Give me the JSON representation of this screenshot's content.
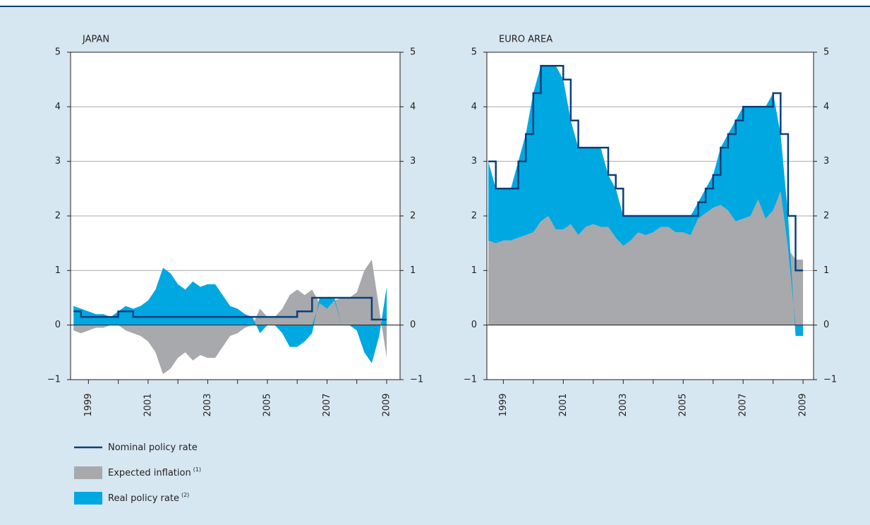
{
  "chart_data": [
    {
      "type": "area",
      "title": "JAPAN",
      "x": [
        1998.5,
        1998.75,
        1999,
        1999.25,
        1999.5,
        1999.75,
        2000,
        2000.25,
        2000.5,
        2000.75,
        2001,
        2001.25,
        2001.5,
        2001.75,
        2002,
        2002.25,
        2002.5,
        2002.75,
        2003,
        2003.25,
        2003.5,
        2003.75,
        2004,
        2004.25,
        2004.5,
        2004.75,
        2005,
        2005.25,
        2005.5,
        2005.75,
        2006,
        2006.25,
        2006.5,
        2006.75,
        2007,
        2007.25,
        2007.5,
        2007.75,
        2008,
        2008.25,
        2008.5,
        2008.75,
        2009
      ],
      "series": [
        {
          "name": "Expected inflation",
          "footnote": "(1)",
          "type": "area",
          "color": "#a7a9ac",
          "values": [
            -0.1,
            -0.15,
            -0.1,
            -0.05,
            -0.05,
            0,
            0,
            -0.1,
            -0.15,
            -0.2,
            -0.3,
            -0.5,
            -0.9,
            -0.8,
            -0.6,
            -0.5,
            -0.65,
            -0.55,
            -0.6,
            -0.6,
            -0.4,
            -0.2,
            -0.15,
            -0.05,
            0,
            0.3,
            0.15,
            0.15,
            0.3,
            0.55,
            0.65,
            0.55,
            0.65,
            0.4,
            0.3,
            0.45,
            0.5,
            0.5,
            0.6,
            1.0,
            1.2,
            0.3,
            -0.6
          ]
        },
        {
          "name": "Real policy rate",
          "footnote": "(2)",
          "type": "area",
          "color": "#00a8e1",
          "values": [
            0.35,
            0.3,
            0.25,
            0.2,
            0.2,
            0.15,
            0.25,
            0.35,
            0.3,
            0.35,
            0.45,
            0.65,
            1.05,
            0.95,
            0.75,
            0.65,
            0.8,
            0.7,
            0.75,
            0.75,
            0.55,
            0.35,
            0.3,
            0.2,
            0.15,
            -0.15,
            0,
            0,
            -0.15,
            -0.4,
            -0.4,
            -0.3,
            -0.15,
            0.1,
            0.2,
            0.05,
            0,
            0,
            -0.1,
            -0.5,
            -0.7,
            -0.2,
            0.7
          ]
        },
        {
          "name": "Nominal policy rate",
          "type": "line",
          "color": "#0b3f7c",
          "values": [
            0.25,
            0.15,
            0.15,
            0.15,
            0.15,
            0.15,
            0.25,
            0.25,
            0.15,
            0.15,
            0.15,
            0.15,
            0.15,
            0.15,
            0.15,
            0.15,
            0.15,
            0.15,
            0.15,
            0.15,
            0.15,
            0.15,
            0.15,
            0.15,
            0.15,
            0.15,
            0.15,
            0.15,
            0.15,
            0.15,
            0.25,
            0.25,
            0.5,
            0.5,
            0.5,
            0.5,
            0.5,
            0.5,
            0.5,
            0.5,
            0.1,
            0.1,
            0.1
          ]
        }
      ],
      "xlim": [
        1998.4,
        2009.45
      ],
      "xticks": [
        1999,
        2001,
        2003,
        2005,
        2007,
        2009
      ],
      "ylim": [
        -1,
        5
      ],
      "yticks": [
        {
          "value": -1,
          "label": "−1"
        },
        0,
        1,
        2,
        3,
        4,
        5
      ],
      "grid": true
    },
    {
      "type": "area",
      "title": "EURO AREA",
      "x": [
        1998.5,
        1998.75,
        1999,
        1999.25,
        1999.5,
        1999.75,
        2000,
        2000.25,
        2000.5,
        2000.75,
        2001,
        2001.25,
        2001.5,
        2001.75,
        2002,
        2002.25,
        2002.5,
        2002.75,
        2003,
        2003.25,
        2003.5,
        2003.75,
        2004,
        2004.25,
        2004.5,
        2004.75,
        2005,
        2005.25,
        2005.5,
        2005.75,
        2006,
        2006.25,
        2006.5,
        2006.75,
        2007,
        2007.25,
        2007.5,
        2007.75,
        2008,
        2008.25,
        2008.5,
        2008.75,
        2009
      ],
      "series": [
        {
          "name": "Expected inflation",
          "footnote": "(1)",
          "type": "area",
          "color": "#a7a9ac",
          "values": [
            1.55,
            1.5,
            1.55,
            1.55,
            1.6,
            1.65,
            1.7,
            1.9,
            2.0,
            1.75,
            1.75,
            1.85,
            1.65,
            1.8,
            1.85,
            1.8,
            1.8,
            1.6,
            1.45,
            1.55,
            1.7,
            1.65,
            1.7,
            1.8,
            1.8,
            1.7,
            1.7,
            1.65,
            1.95,
            2.05,
            2.15,
            2.2,
            2.1,
            1.9,
            1.95,
            2.0,
            2.3,
            1.95,
            2.1,
            2.45,
            1.4,
            1.2,
            1.2
          ]
        },
        {
          "name": "Real policy rate",
          "footnote": "(2)",
          "type": "area",
          "color": "#00a8e1",
          "values": [
            1.45,
            1.0,
            0.95,
            0.95,
            1.4,
            1.85,
            2.55,
            2.85,
            2.75,
            3.0,
            2.75,
            1.9,
            1.6,
            1.45,
            1.4,
            1.45,
            0.95,
            0.9,
            0.55,
            0.45,
            0.3,
            0.35,
            0.3,
            0.2,
            0.2,
            0.3,
            0.3,
            0.35,
            0.3,
            0.45,
            0.6,
            1.05,
            1.4,
            1.85,
            2.05,
            2.0,
            1.7,
            2.05,
            2.15,
            1.05,
            0.6,
            -0.2,
            -0.2
          ]
        },
        {
          "name": "Nominal policy rate",
          "type": "line",
          "color": "#0b3f7c",
          "values": [
            3.0,
            2.5,
            2.5,
            2.5,
            3.0,
            3.5,
            4.25,
            4.75,
            4.75,
            4.75,
            4.5,
            3.75,
            3.25,
            3.25,
            3.25,
            3.25,
            2.75,
            2.5,
            2.0,
            2.0,
            2.0,
            2.0,
            2.0,
            2.0,
            2.0,
            2.0,
            2.0,
            2.0,
            2.25,
            2.5,
            2.75,
            3.25,
            3.5,
            3.75,
            4.0,
            4.0,
            4.0,
            4.0,
            4.25,
            3.5,
            2.0,
            1.0,
            1.0
          ]
        }
      ],
      "xlim": [
        1998.45,
        2009.35
      ],
      "xticks": [
        1999,
        2001,
        2003,
        2005,
        2007,
        2009
      ],
      "ylim": [
        -1,
        5
      ],
      "yticks": [
        {
          "value": -1,
          "label": "−1"
        },
        0,
        1,
        2,
        3,
        4,
        5
      ],
      "grid": true
    }
  ]
}
